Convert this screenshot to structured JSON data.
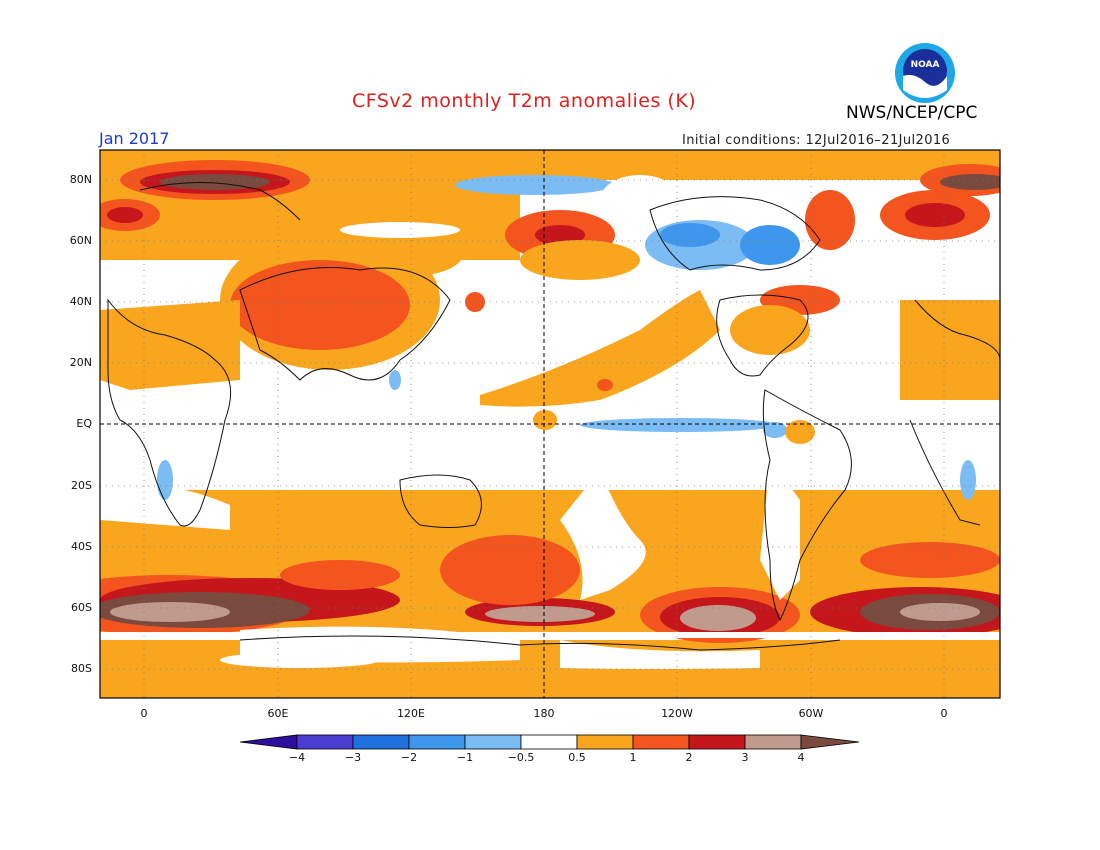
{
  "header": {
    "title": "CFSv2 monthly T2m anomalies (K)",
    "agency": "NWS/NCEP/CPC",
    "month": "Jan 2017",
    "initial_conditions": "Initial conditions: 12Jul2016–21Jul2016",
    "logo_text": "NOAA"
  },
  "map": {
    "lat_labels": [
      "80N",
      "60N",
      "40N",
      "20N",
      "EQ",
      "20S",
      "40S",
      "60S",
      "80S"
    ],
    "lon_labels": [
      "0",
      "60E",
      "120E",
      "180",
      "120W",
      "60W",
      "0"
    ],
    "dashed_lines": [
      "Equator",
      "180"
    ]
  },
  "colorbar": {
    "labels": [
      "−4",
      "−3",
      "−2",
      "−1",
      "−0.5",
      "0.5",
      "1",
      "2",
      "3",
      "4"
    ],
    "colors": [
      "#2c0f9c",
      "#4a3ed0",
      "#1f6fde",
      "#3e97ec",
      "#7cbcf4",
      "#ffffff",
      "#f9a51e",
      "#f4541e",
      "#c4161b",
      "#c19a8e",
      "#7a4a3e"
    ]
  },
  "colors": {
    "title": "#e01f1f",
    "month": "#1a3ad8",
    "orange": "#f9a51e",
    "red_orange": "#f4541e",
    "dark_red": "#c4161b",
    "brownish_pink": "#c19a8e",
    "dark_brown": "#7a4a3e",
    "light_blue": "#7cbcf4",
    "mid_blue": "#3e97ec"
  }
}
